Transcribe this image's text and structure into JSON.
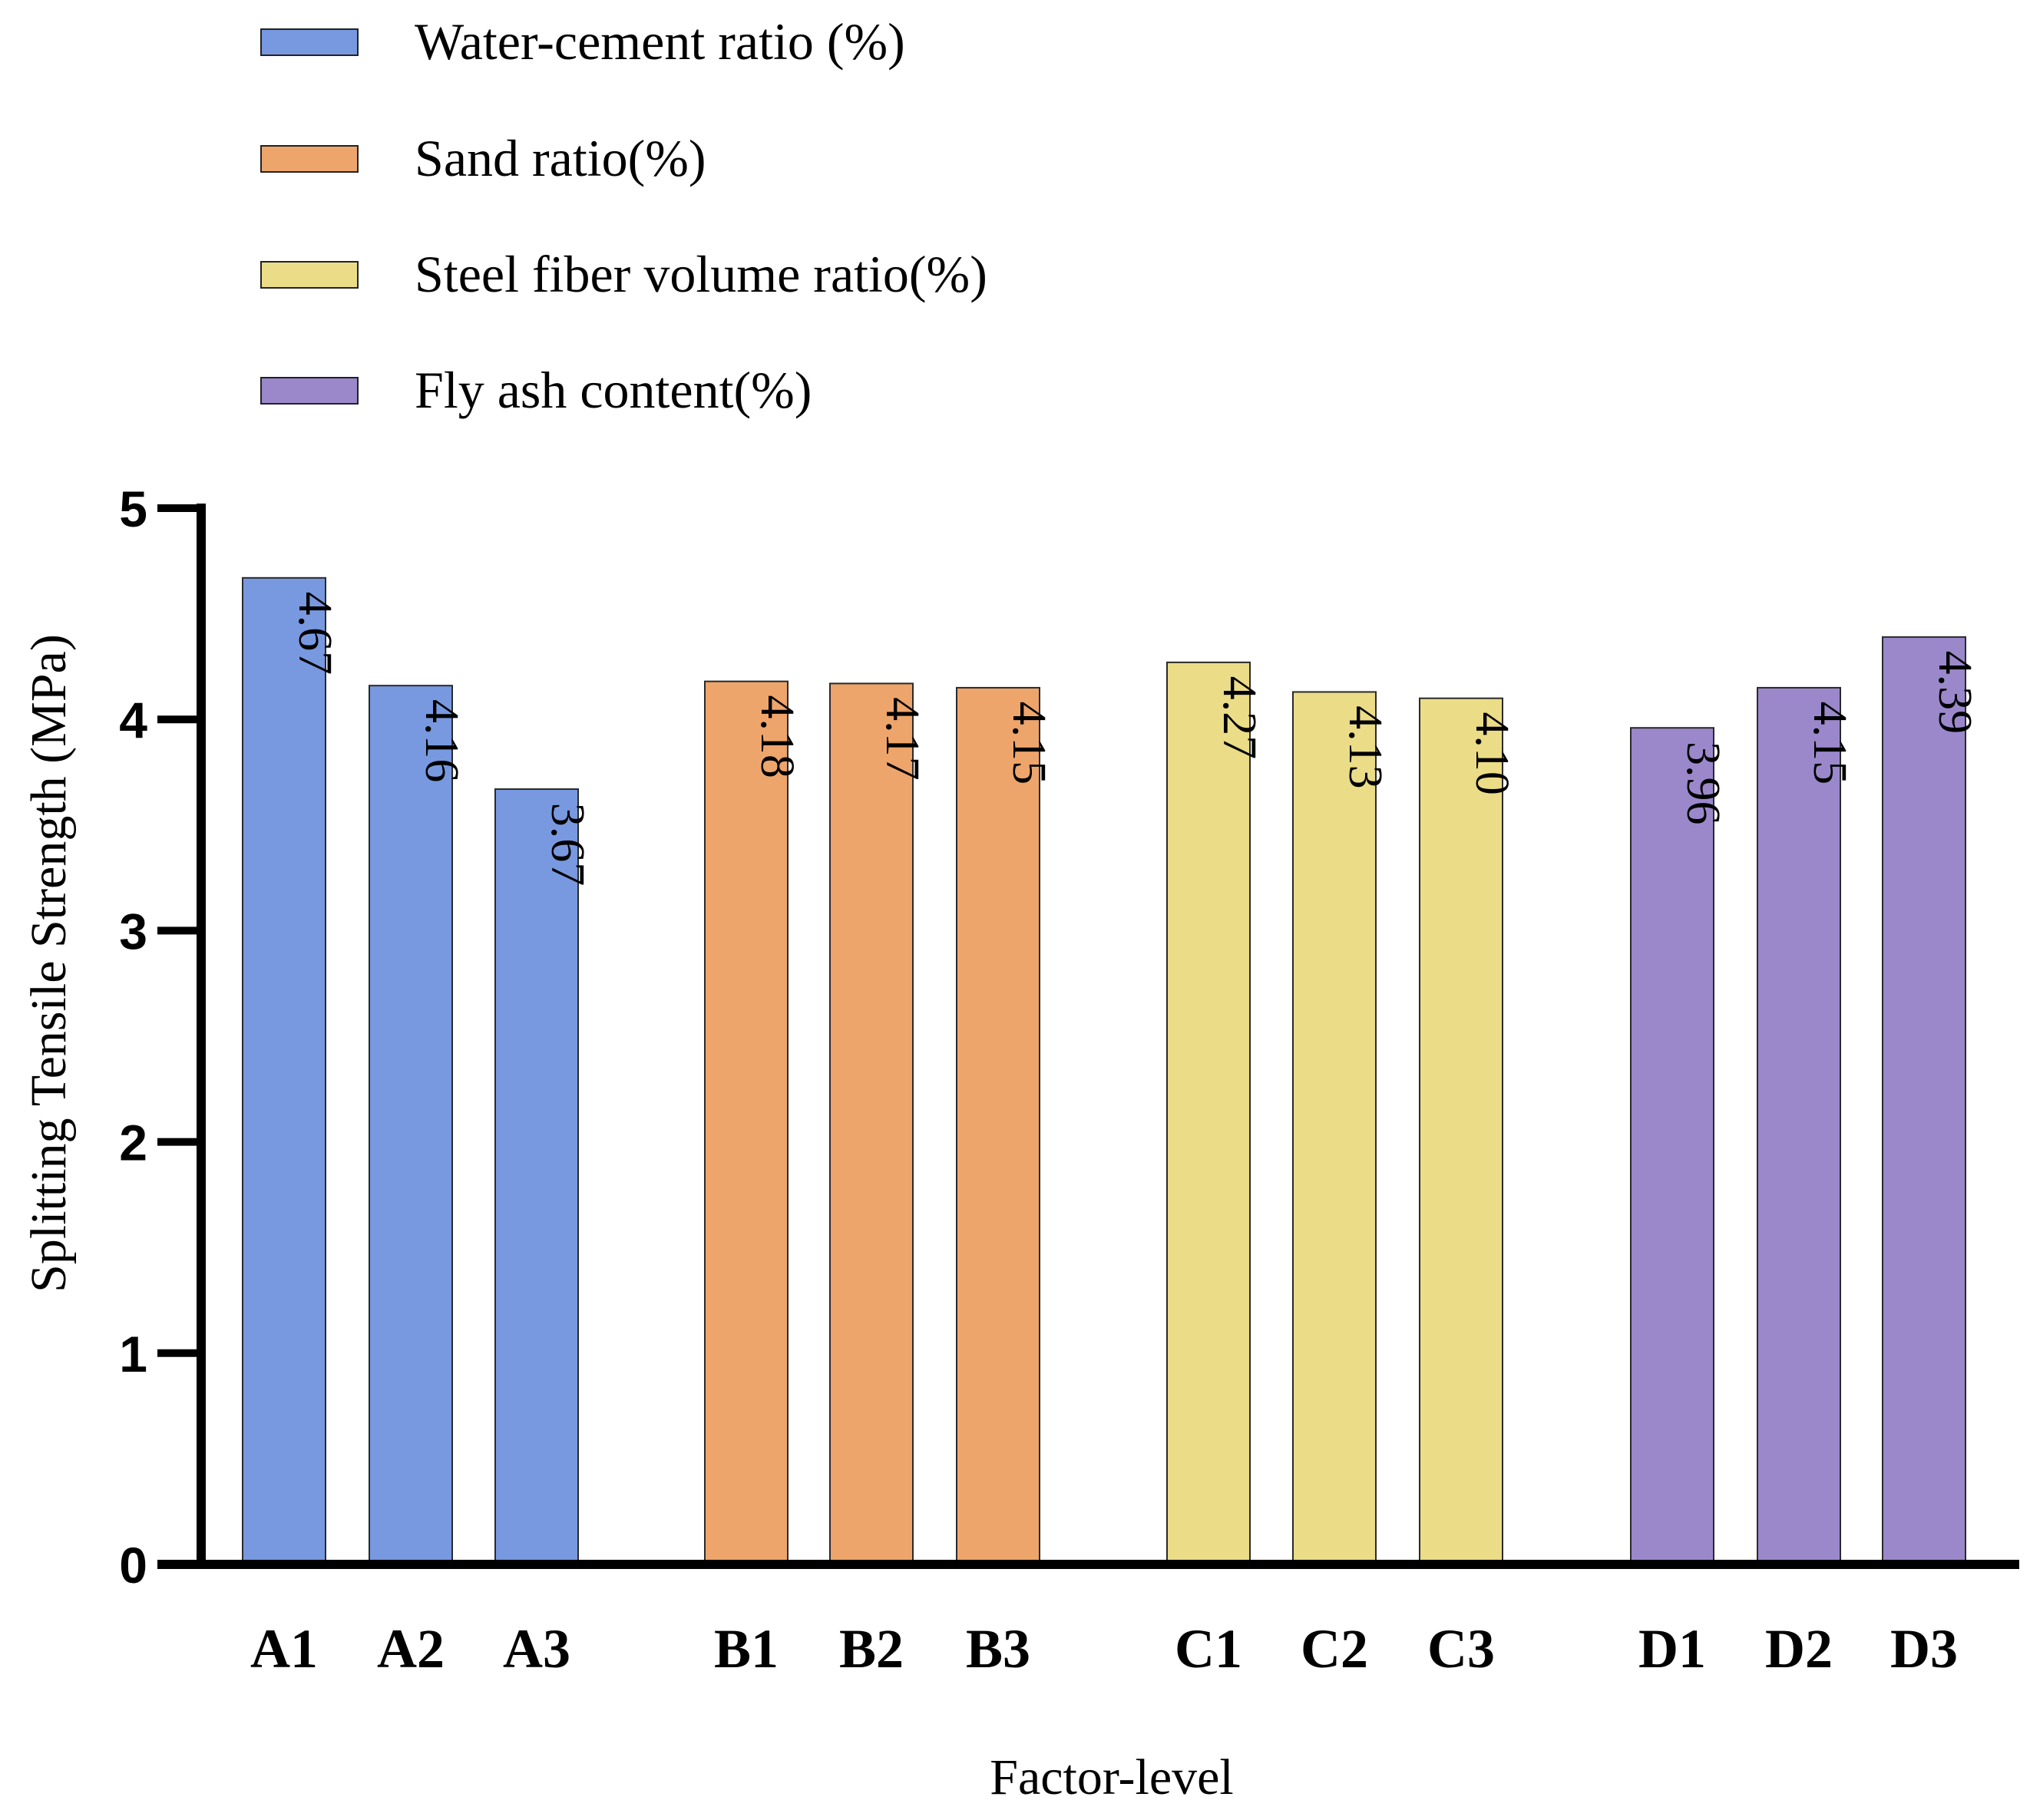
{
  "chart_data": {
    "type": "bar",
    "title": "",
    "xlabel": "Factor-level",
    "ylabel": "Splitting Tensile Strength (MPa)",
    "ylim": [
      0,
      5
    ],
    "yticks": [
      "0",
      "1",
      "2",
      "3",
      "4",
      "5"
    ],
    "grid": false,
    "legend_position": "top-left",
    "series": [
      {
        "name": "Water-cement ratio (%)",
        "color": "#7899e0",
        "categories": [
          "A1",
          "A2",
          "A3"
        ],
        "values": [
          4.67,
          4.16,
          3.67
        ],
        "labels": [
          "4.67",
          "4.16",
          "3.67"
        ]
      },
      {
        "name": "Sand ratio(%)",
        "color": "#eea56b",
        "categories": [
          "B1",
          "B2",
          "B3"
        ],
        "values": [
          4.18,
          4.17,
          4.15
        ],
        "labels": [
          "4.18",
          "4.17",
          "4.15"
        ]
      },
      {
        "name": "Steel fiber volume ratio(%)",
        "color": "#ebdc88",
        "categories": [
          "C1",
          "C2",
          "C3"
        ],
        "values": [
          4.27,
          4.13,
          4.1
        ],
        "labels": [
          "4.27",
          "4.13",
          "4.10"
        ]
      },
      {
        "name": "Fly ash content(%)",
        "color": "#9b88cb",
        "categories": [
          "D1",
          "D2",
          "D3"
        ],
        "values": [
          3.96,
          4.15,
          4.39
        ],
        "labels": [
          "3.96",
          "4.15",
          "4.39"
        ]
      }
    ]
  }
}
